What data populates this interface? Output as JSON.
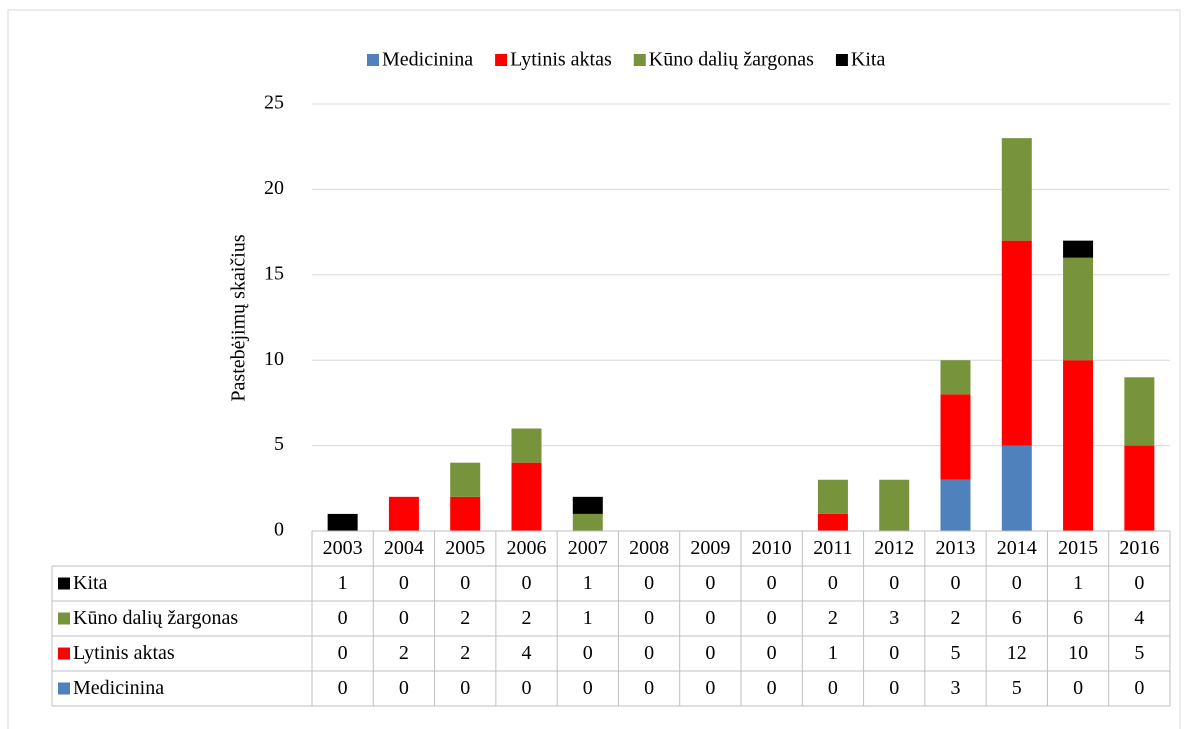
{
  "chart_data": {
    "type": "stacked_bar",
    "y_label": "Pastebėjimų skaičius",
    "categories": [
      "2003",
      "2004",
      "2005",
      "2006",
      "2007",
      "2008",
      "2009",
      "2010",
      "2011",
      "2012",
      "2013",
      "2014",
      "2015",
      "2016"
    ],
    "series": [
      {
        "name": "Medicinina",
        "color": "#4f81bd",
        "values": [
          0,
          0,
          0,
          0,
          0,
          0,
          0,
          0,
          0,
          0,
          3,
          5,
          0,
          0
        ]
      },
      {
        "name": "Lytinis aktas",
        "color": "#ff0000",
        "values": [
          0,
          2,
          2,
          4,
          0,
          0,
          0,
          0,
          1,
          0,
          5,
          12,
          10,
          5
        ]
      },
      {
        "name": "Kūno dalių žargonas",
        "color": "#77933c",
        "values": [
          0,
          0,
          2,
          2,
          1,
          0,
          0,
          0,
          2,
          3,
          2,
          6,
          6,
          4
        ]
      },
      {
        "name": "Kita",
        "color": "#000000",
        "values": [
          1,
          0,
          0,
          0,
          1,
          0,
          0,
          0,
          0,
          0,
          0,
          0,
          1,
          0
        ]
      }
    ],
    "ylim": [
      0,
      25
    ],
    "yticks": [
      0,
      5,
      10,
      15,
      20,
      25
    ],
    "grid": true,
    "legend": "top",
    "data_table": true
  }
}
